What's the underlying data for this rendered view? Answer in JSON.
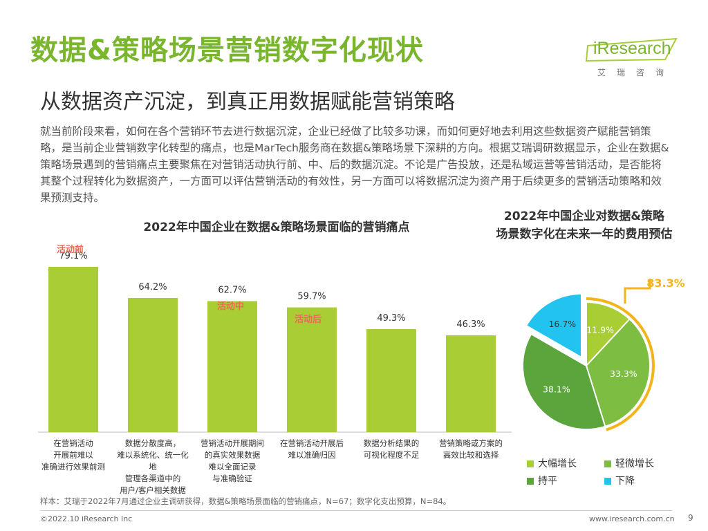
{
  "header": {
    "title": "数据&策略场景营销数字化现状",
    "subtitle": "从数据资产沉淀，到真正用数据赋能营销策略",
    "logo_text": "iResearch",
    "logo_subtext": "艾瑞咨询"
  },
  "intro_text": "就当前阶段来看，如何在各个营销环节去进行数据沉淀，企业已经做了比较多功课，而如何更好地去利用这些数据资产赋能营销策略，是当前企业营销数字化转型的痛点，也是MarTech服务商在数据&策略场景下深耕的方向。根据艾瑞调研数据显示，企业在数据&策略场景遇到的营销痛点主要聚焦在对营销活动执行前、中、后的数据沉淀。不论是广告投放，还是私域运营等营销活动，是否能将其整个过程转化为数据资产，一方面可以评估营销活动的有效性，另一方面可以将数据沉淀为资产用于后续更多的营销活动策略和效果预测支持。",
  "phase_labels": [
    "活动前",
    "活动中",
    "活动后"
  ],
  "colors": {
    "brand": "#7ab52e",
    "bar": "#a9cd35",
    "phase": "#f06858",
    "pie_large_increase": "#a9cd35",
    "pie_slight_increase": "#7cbd42",
    "pie_flat": "#5ba53c",
    "pie_decrease": "#22c3ef",
    "callout": "#f2b418"
  },
  "chart_data": [
    {
      "type": "bar",
      "title": "2022年中国企业在数据&策略场景面临的营销痛点",
      "categories": [
        "在营销活动开展前难以准确进行效果前测",
        "数据分散度高，难以系统化、统一化地管理各渠道中的用户/客户相关数据",
        "营销活动开展期间的真实效果数据难以全面记录与准确验证",
        "在营销活动开展后难以准确归因",
        "数据分析结果的可视化程度不足",
        "营销策略或方案的高效比较和选择"
      ],
      "category_lines": [
        [
          "在营销活动",
          "开展前难以",
          "准确进行效果前测"
        ],
        [
          "数据分散度高，",
          "难以系统化、统一化地",
          "管理各渠道中的",
          "用户/客户相关数据"
        ],
        [
          "营销活动开展期间",
          "的真实效果数据",
          "难以全面记录",
          "与准确验证"
        ],
        [
          "在营销活动开展后",
          "难以准确归因"
        ],
        [
          "数据分析结果的",
          "可视化程度不足"
        ],
        [
          "营销策略或方案的",
          "高效比较和选择"
        ]
      ],
      "values": [
        79.1,
        64.2,
        62.7,
        59.7,
        49.3,
        46.3
      ],
      "value_labels": [
        "79.1%",
        "64.2%",
        "62.7%",
        "59.7%",
        "49.3%",
        "46.3%"
      ],
      "ylim": [
        0,
        90
      ],
      "grid": false
    },
    {
      "type": "pie",
      "title": "2022年中国企业对数据&策略场景数字化在未来一年的费用预估",
      "title_lines": [
        "2022年中国企业对数据&策略",
        "场景数字化在未来一年的费用预估"
      ],
      "slices": [
        {
          "name": "大幅增长",
          "value": 11.9,
          "label": "11.9%"
        },
        {
          "name": "轻微增长",
          "value": 33.3,
          "label": "33.3%"
        },
        {
          "name": "持平",
          "value": 38.1,
          "label": "38.1%"
        },
        {
          "name": "下降",
          "value": 16.7,
          "label": "16.7%"
        }
      ],
      "callout": "83.3%",
      "legend": [
        "大幅增长",
        "轻微增长",
        "持平",
        "下降"
      ],
      "legend_position": "bottom"
    }
  ],
  "footer": {
    "source_note": "样本：艾瑞于2022年7月通过企业主调研获得，数据&策略场景面临的营销痛点，N=67；数字化支出预算，N=84。",
    "copyright": "©2022.10 iResearch Inc",
    "website": "www.iresearch.com.cn",
    "page_number": "9"
  }
}
